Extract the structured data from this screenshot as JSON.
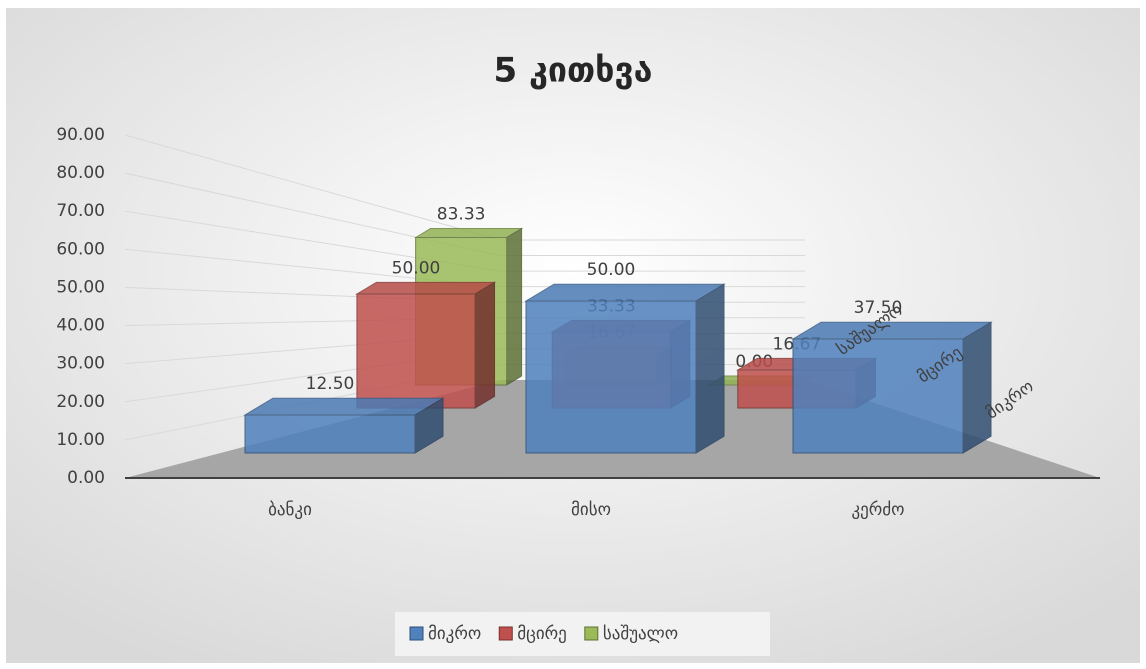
{
  "chart_data": {
    "type": "bar3d",
    "title": "5 კითხვა",
    "categories": [
      "ბანკი",
      "მისო",
      "კერძო"
    ],
    "series": [
      {
        "name": "მიკრო",
        "color": "#4f81bd",
        "values": [
          12.5,
          50,
          37.5
        ],
        "value_labels": [
          "12.50",
          "50.00",
          "37.50"
        ]
      },
      {
        "name": "მცირე",
        "color": "#c0504d",
        "values": [
          50,
          33.33,
          16.67
        ],
        "value_labels": [
          "50.00",
          "33.33",
          "16.67"
        ]
      },
      {
        "name": "საშუალო",
        "color": "#9bbb59",
        "values": [
          83.33,
          16.67,
          0
        ],
        "value_labels": [
          "83.33",
          "16.67",
          "0.00"
        ]
      }
    ],
    "ylim": [
      0,
      90
    ],
    "yticks": [
      {
        "value": 0,
        "label": "0.00"
      },
      {
        "value": 10,
        "label": "10.00"
      },
      {
        "value": 20,
        "label": "20.00"
      },
      {
        "value": 30,
        "label": "30.00"
      },
      {
        "value": 40,
        "label": "40.00"
      },
      {
        "value": 50,
        "label": "50.00"
      },
      {
        "value": 60,
        "label": "60.00"
      },
      {
        "value": 70,
        "label": "70.00"
      },
      {
        "value": 80,
        "label": "80.00"
      },
      {
        "value": 90,
        "label": "90.00"
      }
    ],
    "grid": true,
    "legend": "bottom"
  }
}
